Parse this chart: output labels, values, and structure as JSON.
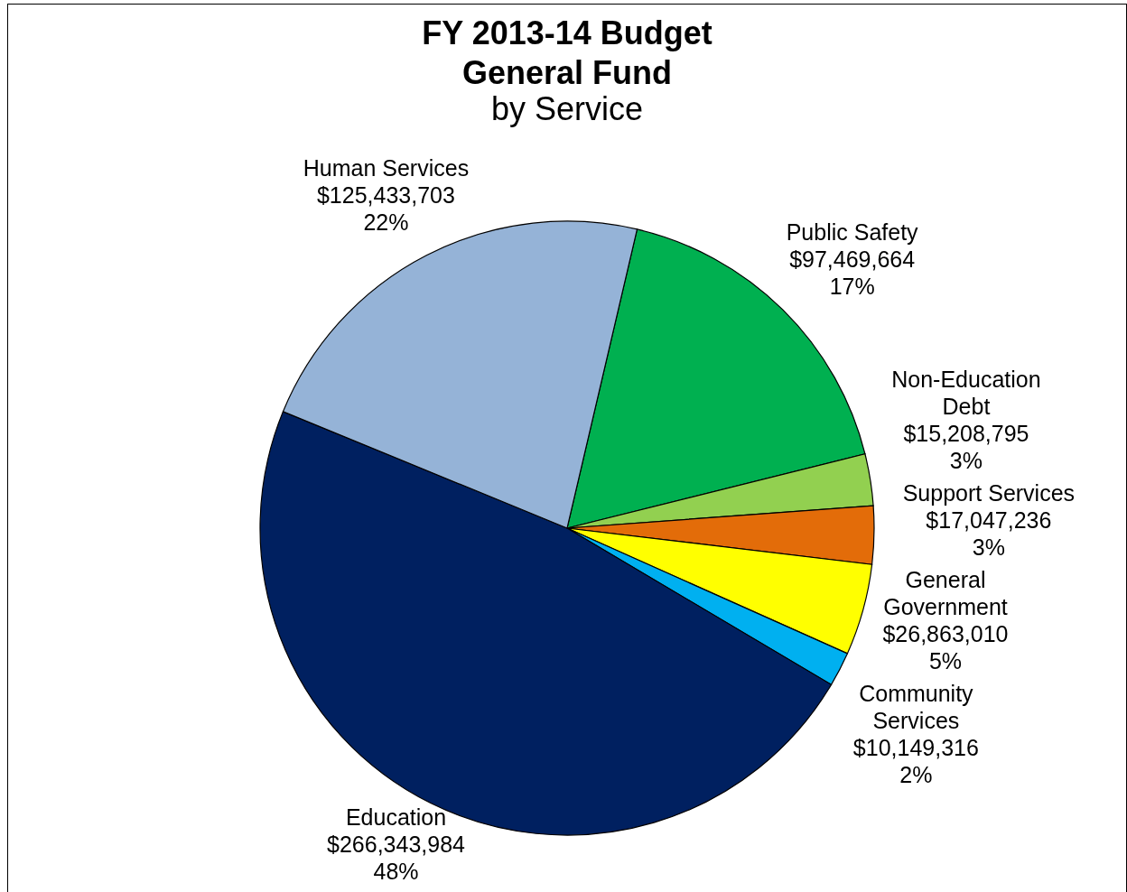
{
  "chart_data": {
    "type": "pie",
    "title": "FY 2013-14  Budget\nGeneral Fund",
    "subtitle": "by Service",
    "categories": [
      "Public Safety",
      "Non-Education\nDebt",
      "Support Services",
      "General\nGovernment",
      "Community\nServices",
      "Education",
      "Human Services"
    ],
    "values": [
      97469664,
      15208795,
      17047236,
      26863010,
      10149316,
      266343984,
      125433703
    ],
    "colors": [
      "#00b050",
      "#92d050",
      "#e36c09",
      "#ffff00",
      "#00b0f0",
      "#002060",
      "#95b3d7"
    ],
    "value_labels": [
      "$97,469,664\n17%",
      "$15,208,795\n3%",
      "$17,047,236\n3%",
      "$26,863,010\n5%",
      "$10,149,316\n2%",
      "$266,343,984\n48%",
      "$125,433,703\n22%"
    ]
  }
}
